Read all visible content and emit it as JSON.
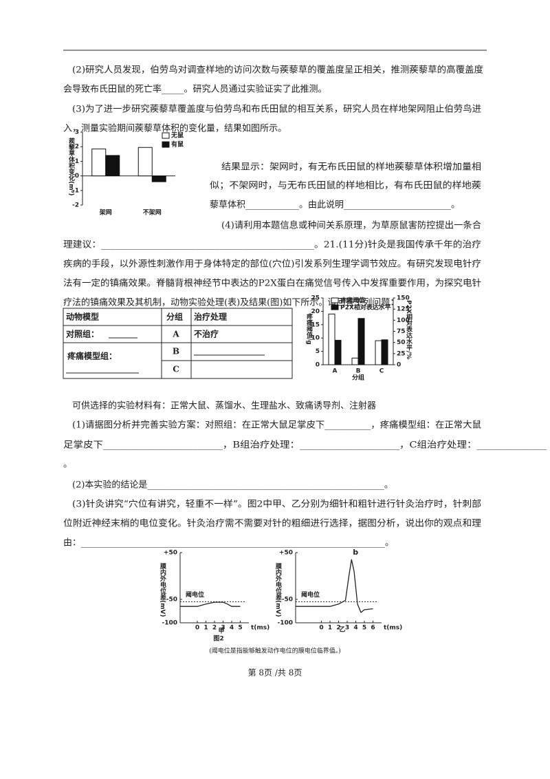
{
  "lines": [
    "(2)研究人员发现，伯劳鸟对调查样地的访问次数与蒺藜草的覆盖度呈正相关，推测蒺藜草的高覆盖度",
    "会导致布氏田鼠的死亡率_____。研究人员通过实验证实了此推测。",
    "(3)为了进一步研究蒺藜草覆盖度与伯劳鸟和布氏田鼠的相互关系，研究人员在样地架网阻止伯劳鸟进",
    "入，测量实验期间蒺藜草体积的变化量，结果如图所示。",
    "结果显示：架网时，有无布氏田鼠的样地蒺藜草体积增加量相",
    "似；不架网时，与无布氏田鼠的样地相比，有布氏田鼠的样地蒺",
    "藜草体积____________。由此说明________________________。",
    "(4)请利用本题信息或种间关系原理，为草原鼠害防控提出一条合",
    "理建议：_____________________________________________。21.(11分)针灸是我国传承千年的治疗",
    "疾病的手段，以外源性刺激作用于身体特定的部位(穴位)引发系列生理学调节效应。有研究发现电针疗",
    "法有一定的镇痛效果。脊髓背根神经节中表达的P2X蛋白在痛觉信号传入中发挥重要作用，为探究电针",
    "疗法的镇痛效果及其机制，动物实验处理(表)及结果(图)如下所示。请回答下列问题：",
    "可供选择的实验材料有：正常大鼠、蒸馏水、生理盐水、致痛诱导剂、注射器",
    "(1)请据图分析并完善实验方案：对照组：在正常大鼠足掌皮下__________，疼痛模型组：在正常大鼠",
    "足掌皮下________________________，B组治疗处理：____________________，C组治疗处理：______________",
    "。",
    "(2)本实验的结论是_____________________________________________________。",
    "(3)针灸讲究“穴位有讲究，轻重不一样”。图2中甲、乙分别为细针和粗针进行针灸治疗时，针刺部",
    "位附近神经末梢的电位变化。针灸治疗需不需要对针的粗细进行选择，据图分析，说出你的观点和理",
    "由：____________________________________________________________________。"
  ],
  "figure1": {
    "type": "bar",
    "y_label": "蒺藜草体积变化(m³)",
    "categories": [
      "架网",
      "不架网"
    ],
    "series": [
      {
        "name": "无鼠",
        "color": "#ffffff",
        "values": [
          1.85,
          1.95
        ]
      },
      {
        "name": "有鼠",
        "color": "#111111",
        "values": [
          1.4,
          -0.4
        ]
      }
    ],
    "ylim": [
      -2,
      3
    ],
    "yticks": [
      -2,
      -1,
      0,
      1,
      2,
      3
    ]
  },
  "table": {
    "header": [
      "动物模型",
      "分组",
      "治疗处理"
    ],
    "control": "对照组：",
    "model": "疼痛模型组：",
    "groups": [
      "A",
      "B",
      "C"
    ],
    "treatment_a": "不治疗"
  },
  "figure2": {
    "type": "bar",
    "y_label": "疼痛阈值/g",
    "y2_label": "P2X相对表达水平/%",
    "x_label": "分组",
    "categories": [
      "A",
      "B",
      "C"
    ],
    "series": [
      {
        "name": "疼痛阈值",
        "color": "#ffffff",
        "values": [
          19,
          2.5,
          9
        ]
      },
      {
        "name": "P2X相对表达水平",
        "color": "#111111",
        "axis": "y2",
        "values": [
          55,
          104,
          56
        ]
      }
    ],
    "ylim": [
      0,
      25
    ],
    "yticks": [
      0,
      5,
      10,
      15,
      20,
      25
    ],
    "y2lim": [
      0,
      150
    ],
    "y2ticks": [
      0,
      25,
      50,
      75,
      100,
      125,
      150
    ]
  },
  "figure3": {
    "type": "line",
    "caption": "图2",
    "y_label": "膜内外电位差(mV)",
    "x_label": "t(ms)",
    "threshold_label": "阈电位",
    "threshold": -55,
    "ylim": [
      -100,
      50
    ],
    "yticks": [
      {
        "value": 50,
        "label": "+50"
      },
      -50,
      -100
    ],
    "panels": [
      {
        "label": "甲",
        "xlim": [
          -2,
          6
        ],
        "xticks": [
          0,
          1,
          2,
          3,
          4,
          5
        ],
        "x": [
          -2,
          0,
          1,
          2,
          3,
          3.5,
          4,
          5
        ],
        "y": [
          -65,
          -65,
          -60,
          -56,
          -56,
          -60,
          -65,
          -65
        ]
      },
      {
        "label": "乙",
        "peak_label": "b",
        "xlim": [
          -3,
          7
        ],
        "xticks": [
          0,
          1,
          2,
          3,
          4,
          5,
          6
        ],
        "x": [
          -3,
          0,
          1,
          2,
          2.8,
          3.2,
          3.5,
          3.8,
          4.2,
          4.6,
          5,
          6
        ],
        "y": [
          -65,
          -65,
          -65,
          -60,
          -52,
          0,
          35,
          10,
          -60,
          -78,
          -72,
          -70
        ]
      }
    ],
    "note": "(阈电位是指能够触发动作电位的膜电位临界值。)"
  },
  "footer": "第 8页 /共 8页"
}
